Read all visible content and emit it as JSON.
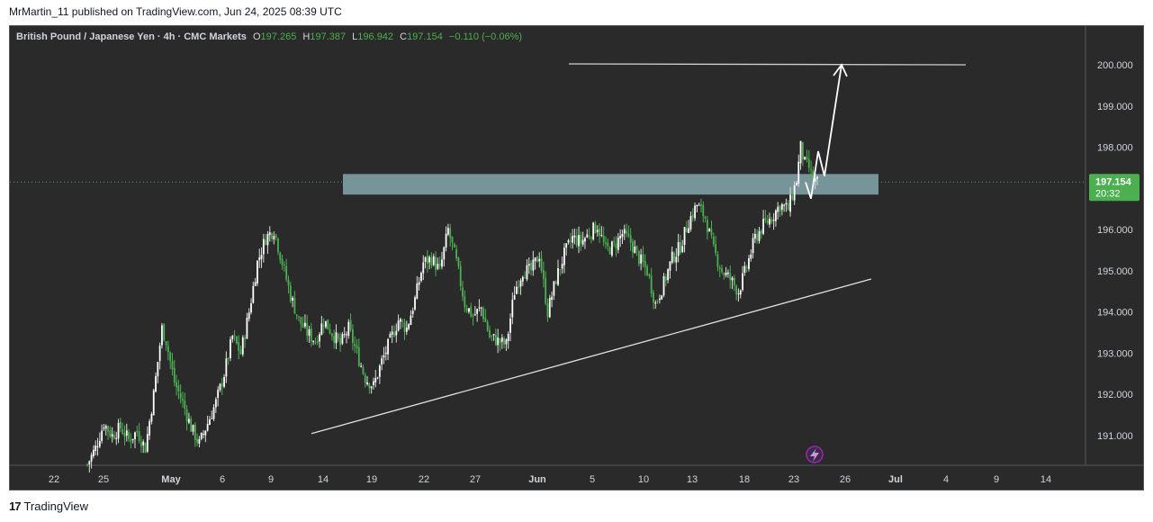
{
  "header": {
    "published": "MrMartin_11 published on TradingView.com, Jun 24, 2025 08:39 UTC"
  },
  "legend": {
    "symbol": "British Pound / Japanese Yen · 4h · CMC Markets",
    "o_label": "O",
    "o_value": "197.265",
    "h_label": "H",
    "h_value": "197.387",
    "l_label": "L",
    "l_value": "196.942",
    "c_label": "C",
    "c_value": "197.154",
    "change": "−0.110 (−0.06%)"
  },
  "price_label": {
    "price": "197.154",
    "countdown": "20:32"
  },
  "footer": {
    "brand": "TradingView"
  },
  "colors": {
    "background": "#2a2a2a",
    "up_candle": "#ffffff",
    "down_candle": "#4caf50",
    "wick_up": "#dddddd",
    "wick_down": "#4caf50",
    "zone": "#7a9aa0",
    "price_badge": "#4caf50",
    "lines": "#ffffff"
  },
  "chart_data": {
    "type": "candlestick",
    "title": "British Pound / Japanese Yen · 4h · CMC Markets",
    "y_ticks": [
      "191.000",
      "192.000",
      "193.000",
      "194.000",
      "195.000",
      "196.000",
      "197.000",
      "198.000",
      "199.000",
      "200.000"
    ],
    "ylim": [
      190.2,
      201.3
    ],
    "x_ticks": [
      "22",
      "25",
      "May",
      "6",
      "9",
      "14",
      "19",
      "22",
      "27",
      "Jun",
      "5",
      "10",
      "13",
      "18",
      "23",
      "26",
      "Jul",
      "4",
      "9",
      "14"
    ],
    "last_price": 197.154,
    "close_path": [
      {
        "i": 0,
        "y": 190.3
      },
      {
        "i": 4,
        "y": 190.7
      },
      {
        "i": 8,
        "y": 191.3
      },
      {
        "i": 12,
        "y": 191.0
      },
      {
        "i": 16,
        "y": 191.2
      },
      {
        "i": 20,
        "y": 190.9
      },
      {
        "i": 24,
        "y": 191.1
      },
      {
        "i": 28,
        "y": 190.7
      },
      {
        "i": 32,
        "y": 192.0
      },
      {
        "i": 36,
        "y": 193.6
      },
      {
        "i": 38,
        "y": 193.3
      },
      {
        "i": 42,
        "y": 192.3
      },
      {
        "i": 46,
        "y": 191.8
      },
      {
        "i": 50,
        "y": 191.2
      },
      {
        "i": 54,
        "y": 190.8
      },
      {
        "i": 58,
        "y": 191.3
      },
      {
        "i": 62,
        "y": 191.8
      },
      {
        "i": 66,
        "y": 192.5
      },
      {
        "i": 70,
        "y": 193.4
      },
      {
        "i": 74,
        "y": 193.0
      },
      {
        "i": 78,
        "y": 194.0
      },
      {
        "i": 82,
        "y": 195.2
      },
      {
        "i": 86,
        "y": 195.8
      },
      {
        "i": 90,
        "y": 196.0
      },
      {
        "i": 94,
        "y": 195.2
      },
      {
        "i": 98,
        "y": 194.4
      },
      {
        "i": 102,
        "y": 193.8
      },
      {
        "i": 106,
        "y": 193.5
      },
      {
        "i": 110,
        "y": 193.3
      },
      {
        "i": 114,
        "y": 193.8
      },
      {
        "i": 118,
        "y": 193.5
      },
      {
        "i": 122,
        "y": 193.2
      },
      {
        "i": 126,
        "y": 193.6
      },
      {
        "i": 130,
        "y": 193.0
      },
      {
        "i": 134,
        "y": 192.4
      },
      {
        "i": 138,
        "y": 192.2
      },
      {
        "i": 142,
        "y": 192.8
      },
      {
        "i": 146,
        "y": 193.3
      },
      {
        "i": 150,
        "y": 193.8
      },
      {
        "i": 154,
        "y": 193.6
      },
      {
        "i": 158,
        "y": 194.3
      },
      {
        "i": 162,
        "y": 195.2
      },
      {
        "i": 166,
        "y": 195.3
      },
      {
        "i": 170,
        "y": 195.0
      },
      {
        "i": 174,
        "y": 196.0
      },
      {
        "i": 178,
        "y": 195.2
      },
      {
        "i": 182,
        "y": 194.2
      },
      {
        "i": 186,
        "y": 193.9
      },
      {
        "i": 190,
        "y": 194.1
      },
      {
        "i": 194,
        "y": 193.4
      },
      {
        "i": 198,
        "y": 193.3
      },
      {
        "i": 202,
        "y": 193.2
      },
      {
        "i": 206,
        "y": 194.5
      },
      {
        "i": 210,
        "y": 195.0
      },
      {
        "i": 214,
        "y": 195.0
      },
      {
        "i": 218,
        "y": 195.4
      },
      {
        "i": 222,
        "y": 194.0
      },
      {
        "i": 226,
        "y": 194.8
      },
      {
        "i": 230,
        "y": 195.4
      },
      {
        "i": 234,
        "y": 195.8
      },
      {
        "i": 238,
        "y": 195.7
      },
      {
        "i": 242,
        "y": 195.9
      },
      {
        "i": 246,
        "y": 196.1
      },
      {
        "i": 250,
        "y": 195.5
      },
      {
        "i": 254,
        "y": 195.6
      },
      {
        "i": 258,
        "y": 195.9
      },
      {
        "i": 262,
        "y": 195.7
      },
      {
        "i": 266,
        "y": 195.3
      },
      {
        "i": 270,
        "y": 195.0
      },
      {
        "i": 274,
        "y": 194.2
      },
      {
        "i": 278,
        "y": 194.7
      },
      {
        "i": 282,
        "y": 195.3
      },
      {
        "i": 286,
        "y": 195.6
      },
      {
        "i": 290,
        "y": 196.2
      },
      {
        "i": 294,
        "y": 196.6
      },
      {
        "i": 298,
        "y": 196.3
      },
      {
        "i": 302,
        "y": 195.5
      },
      {
        "i": 306,
        "y": 195.0
      },
      {
        "i": 310,
        "y": 194.8
      },
      {
        "i": 314,
        "y": 194.5
      },
      {
        "i": 318,
        "y": 195.1
      },
      {
        "i": 322,
        "y": 195.8
      },
      {
        "i": 326,
        "y": 196.1
      },
      {
        "i": 330,
        "y": 196.3
      },
      {
        "i": 334,
        "y": 196.6
      },
      {
        "i": 338,
        "y": 196.5
      },
      {
        "i": 342,
        "y": 197.2
      },
      {
        "i": 344,
        "y": 198.0
      },
      {
        "i": 346,
        "y": 197.6
      },
      {
        "i": 348,
        "y": 197.5
      },
      {
        "i": 350,
        "y": 197.2
      },
      {
        "i": 352,
        "y": 197.15
      }
    ],
    "support_trendline": [
      {
        "x_tick": "13 (Apr 13 area)",
        "from_price": 191.05,
        "to_price": 194.8
      }
    ],
    "resistance_zone": {
      "low": 196.85,
      "high": 197.35
    },
    "target_line": 200.0,
    "projection_path": [
      197.15,
      196.75,
      197.9,
      197.3,
      200.0
    ]
  }
}
